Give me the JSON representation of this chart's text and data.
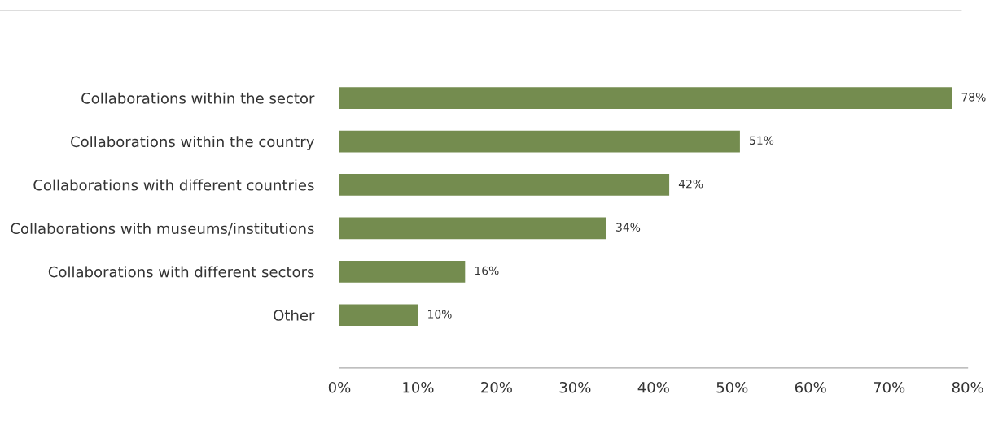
{
  "chart_data": {
    "type": "bar",
    "orientation": "horizontal",
    "categories": [
      "Collaborations within the sector",
      "Collaborations within the country",
      "Collaborations with different countries",
      "Collaborations with museums/institutions",
      "Collaborations with different sectors",
      "Other"
    ],
    "values": [
      78,
      51,
      42,
      34,
      16,
      10
    ],
    "value_labels": [
      "78%",
      "51%",
      "42%",
      "34%",
      "16%",
      "10%"
    ],
    "color": "#748c4f",
    "xlim": [
      0,
      80
    ],
    "xticks": [
      {
        "value": 0,
        "label": "0%"
      },
      {
        "value": 10,
        "label": "10%"
      },
      {
        "value": 20,
        "label": "20%"
      },
      {
        "value": 30,
        "label": "30%"
      },
      {
        "value": 40,
        "label": "40%"
      },
      {
        "value": 50,
        "label": "50%"
      },
      {
        "value": 60,
        "label": "60%"
      },
      {
        "value": 70,
        "label": "70%"
      },
      {
        "value": 80,
        "label": "80%"
      }
    ],
    "grid": false,
    "legend": false
  }
}
